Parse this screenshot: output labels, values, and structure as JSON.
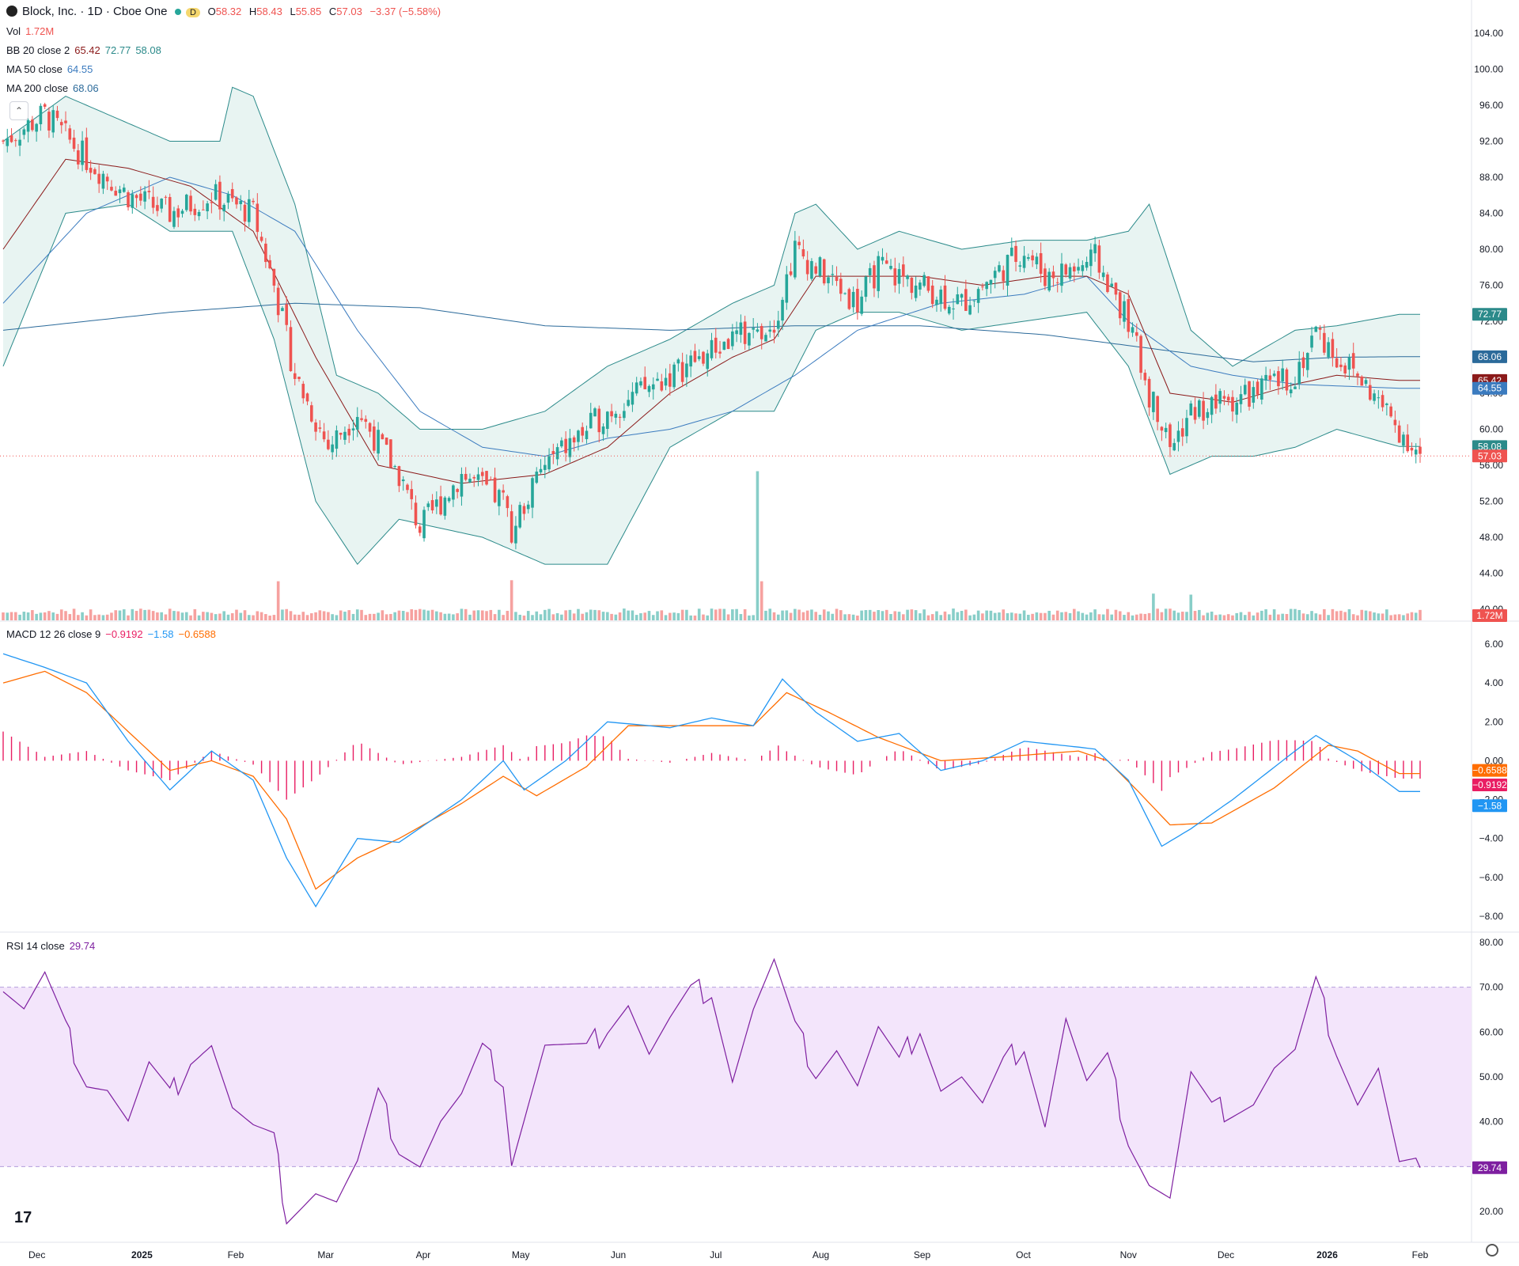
{
  "header": {
    "symbol_title": "Block, Inc. · 1D · Cboe One",
    "badge": "D",
    "open_label": "O",
    "open": "58.32",
    "high_label": "H",
    "high": "58.43",
    "low_label": "L",
    "low": "55.85",
    "close_label": "C",
    "close": "57.03",
    "change": "−3.37 (−5.58%)"
  },
  "indicators": {
    "vol_label": "Vol",
    "vol_value": "1.72M",
    "bb_label": "BB 20 close 2",
    "bb_basis": "65.42",
    "bb_upper": "72.77",
    "bb_lower": "58.08",
    "ma50_label": "MA 50 close",
    "ma50_value": "64.55",
    "ma200_label": "MA 200 close",
    "ma200_value": "68.06",
    "macd_label": "MACD 12 26 close 9",
    "macd_hist": "−0.9192",
    "macd_line": "−1.58",
    "macd_signal": "−0.6588",
    "rsi_label": "RSI 14 close",
    "rsi_value": "29.74"
  },
  "price_badges": {
    "bb_upper": "72.77",
    "ma200": "68.06",
    "bb_basis": "65.42",
    "ma50": "64.55",
    "bb_lower": "58.08",
    "last": "57.03",
    "volume": "1.72M",
    "macd_signal": "−0.6588",
    "macd_hist": "−0.9192",
    "macd_line": "−1.58",
    "rsi": "29.74"
  },
  "colors": {
    "up": "#26a69a",
    "down": "#ef5350",
    "bb_line": "#2b8a8a",
    "bb_fill": "#e8f4f2",
    "ma50": "#3b7bbf",
    "ma200": "#2b6a9a",
    "bb_basis": "#8b1a1a",
    "macd": "#2196f3",
    "signal": "#ff6d00",
    "hist": "#e91e63",
    "rsi": "#7e1fa0",
    "rsi_band": "#f3e5fb"
  },
  "chart_data": [
    {
      "type": "candlestick",
      "title": "Block, Inc. · 1D · Cboe One",
      "x_ticks": [
        "Dec",
        "2025",
        "Feb",
        "Mar",
        "Apr",
        "May",
        "Jun",
        "Jul",
        "Aug",
        "Sep",
        "Oct",
        "Nov",
        "Dec",
        "2026",
        "Feb"
      ],
      "y_ticks": [
        "104.00",
        "100.00",
        "96.00",
        "92.00",
        "88.00",
        "84.00",
        "80.00",
        "76.00",
        "72.00",
        "68.00",
        "64.00",
        "60.00",
        "56.00",
        "52.00",
        "48.00",
        "44.00",
        "40.00"
      ],
      "ylim": [
        40,
        104
      ],
      "close_series_anchors": [
        [
          0,
          92
        ],
        [
          10,
          95
        ],
        [
          20,
          90
        ],
        [
          30,
          86
        ],
        [
          40,
          84
        ],
        [
          50,
          86
        ],
        [
          55,
          85
        ],
        [
          60,
          84
        ],
        [
          65,
          76
        ],
        [
          70,
          66
        ],
        [
          78,
          58
        ],
        [
          85,
          62
        ],
        [
          95,
          55
        ],
        [
          100,
          49
        ],
        [
          110,
          55
        ],
        [
          120,
          52
        ],
        [
          122,
          49
        ],
        [
          130,
          56
        ],
        [
          145,
          62
        ],
        [
          160,
          66
        ],
        [
          175,
          70
        ],
        [
          185,
          72
        ],
        [
          190,
          80
        ],
        [
          200,
          76
        ],
        [
          205,
          74
        ],
        [
          210,
          78
        ],
        [
          220,
          76
        ],
        [
          230,
          74
        ],
        [
          240,
          78
        ],
        [
          245,
          80
        ],
        [
          250,
          77
        ],
        [
          258,
          78
        ],
        [
          262,
          79
        ],
        [
          270,
          72
        ],
        [
          275,
          64
        ],
        [
          280,
          58
        ],
        [
          285,
          62
        ],
        [
          300,
          64
        ],
        [
          310,
          66
        ],
        [
          315,
          71
        ],
        [
          320,
          68
        ],
        [
          325,
          66
        ],
        [
          330,
          63
        ],
        [
          335,
          60
        ],
        [
          340,
          57.03
        ]
      ],
      "bb_upper_anchors": [
        [
          0,
          92
        ],
        [
          15,
          97
        ],
        [
          30,
          94
        ],
        [
          40,
          92
        ],
        [
          52,
          92
        ],
        [
          55,
          98
        ],
        [
          60,
          97
        ],
        [
          70,
          85
        ],
        [
          80,
          66
        ],
        [
          90,
          64
        ],
        [
          100,
          60
        ],
        [
          115,
          60
        ],
        [
          130,
          62
        ],
        [
          145,
          67
        ],
        [
          160,
          70
        ],
        [
          175,
          74
        ],
        [
          185,
          76
        ],
        [
          190,
          84
        ],
        [
          195,
          85
        ],
        [
          205,
          80
        ],
        [
          215,
          82
        ],
        [
          230,
          80
        ],
        [
          245,
          81
        ],
        [
          260,
          81
        ],
        [
          270,
          82
        ],
        [
          275,
          85
        ],
        [
          285,
          71
        ],
        [
          295,
          67
        ],
        [
          310,
          71
        ],
        [
          320,
          71.5
        ],
        [
          335,
          72.77
        ]
      ],
      "bb_lower_anchors": [
        [
          0,
          67
        ],
        [
          15,
          84
        ],
        [
          30,
          85
        ],
        [
          40,
          82
        ],
        [
          55,
          82
        ],
        [
          65,
          70
        ],
        [
          75,
          52
        ],
        [
          85,
          45
        ],
        [
          95,
          50
        ],
        [
          105,
          49
        ],
        [
          115,
          48
        ],
        [
          130,
          45
        ],
        [
          145,
          45
        ],
        [
          160,
          58
        ],
        [
          175,
          62
        ],
        [
          185,
          62
        ],
        [
          195,
          71
        ],
        [
          205,
          73
        ],
        [
          215,
          73
        ],
        [
          230,
          71
        ],
        [
          245,
          72
        ],
        [
          260,
          73
        ],
        [
          270,
          67
        ],
        [
          280,
          55
        ],
        [
          290,
          57
        ],
        [
          300,
          57
        ],
        [
          310,
          58
        ],
        [
          320,
          60
        ],
        [
          335,
          58.08
        ]
      ],
      "bb_basis_anchors": [
        [
          0,
          80
        ],
        [
          15,
          90
        ],
        [
          30,
          89
        ],
        [
          45,
          87
        ],
        [
          60,
          82
        ],
        [
          75,
          68
        ],
        [
          90,
          56
        ],
        [
          110,
          54
        ],
        [
          130,
          55
        ],
        [
          145,
          58
        ],
        [
          160,
          64
        ],
        [
          175,
          68
        ],
        [
          185,
          70
        ],
        [
          195,
          77
        ],
        [
          205,
          77
        ],
        [
          220,
          77
        ],
        [
          235,
          76
        ],
        [
          250,
          77
        ],
        [
          260,
          77
        ],
        [
          270,
          75
        ],
        [
          280,
          64
        ],
        [
          295,
          63
        ],
        [
          310,
          65
        ],
        [
          320,
          66
        ],
        [
          335,
          65.42
        ]
      ],
      "ma50_anchors": [
        [
          0,
          74
        ],
        [
          20,
          84
        ],
        [
          40,
          88
        ],
        [
          55,
          86
        ],
        [
          70,
          82
        ],
        [
          85,
          71
        ],
        [
          100,
          62
        ],
        [
          115,
          58
        ],
        [
          130,
          57
        ],
        [
          145,
          59
        ],
        [
          160,
          60
        ],
        [
          175,
          62
        ],
        [
          190,
          66
        ],
        [
          205,
          71
        ],
        [
          225,
          74
        ],
        [
          245,
          75
        ],
        [
          260,
          77
        ],
        [
          270,
          72
        ],
        [
          285,
          67
        ],
        [
          295,
          66
        ],
        [
          310,
          65
        ],
        [
          335,
          64.55
        ]
      ],
      "ma200_anchors": [
        [
          0,
          71
        ],
        [
          40,
          73
        ],
        [
          70,
          74
        ],
        [
          100,
          73.5
        ],
        [
          130,
          71.5
        ],
        [
          160,
          71
        ],
        [
          190,
          71.5
        ],
        [
          220,
          71.5
        ],
        [
          250,
          70.5
        ],
        [
          275,
          69
        ],
        [
          300,
          67.5
        ],
        [
          320,
          68
        ],
        [
          335,
          68.06
        ]
      ],
      "volume_spikes": [
        [
          66,
          3.8
        ],
        [
          122,
          3.9
        ],
        [
          181,
          14.5
        ],
        [
          182,
          3.8
        ],
        [
          276,
          2.6
        ],
        [
          285,
          2.5
        ]
      ],
      "last_volume": "1.72M"
    },
    {
      "type": "line",
      "title": "MACD 12 26 close 9",
      "y_ticks": [
        "6.00",
        "4.00",
        "2.00",
        "0.00",
        "−2.00",
        "−4.00",
        "−6.00",
        "−8.00"
      ],
      "ylim": [
        -8,
        6
      ],
      "macd_anchors": [
        [
          0,
          5.5
        ],
        [
          10,
          4.8
        ],
        [
          20,
          4
        ],
        [
          30,
          1
        ],
        [
          40,
          -1.5
        ],
        [
          50,
          0.5
        ],
        [
          60,
          -1
        ],
        [
          68,
          -5
        ],
        [
          75,
          -7.5
        ],
        [
          85,
          -4
        ],
        [
          95,
          -4.2
        ],
        [
          110,
          -2
        ],
        [
          120,
          0
        ],
        [
          125,
          -1.5
        ],
        [
          135,
          0
        ],
        [
          145,
          2
        ],
        [
          160,
          1.7
        ],
        [
          170,
          2.2
        ],
        [
          180,
          1.8
        ],
        [
          187,
          4.2
        ],
        [
          195,
          2.5
        ],
        [
          205,
          1
        ],
        [
          215,
          1.4
        ],
        [
          225,
          -0.5
        ],
        [
          235,
          0
        ],
        [
          245,
          1
        ],
        [
          258,
          0.7
        ],
        [
          262,
          0.6
        ],
        [
          270,
          -1
        ],
        [
          278,
          -4.4
        ],
        [
          285,
          -3.5
        ],
        [
          295,
          -2
        ],
        [
          310,
          0.5
        ],
        [
          315,
          1.3
        ],
        [
          325,
          0
        ],
        [
          335,
          -1.58
        ]
      ],
      "signal_anchors": [
        [
          0,
          4
        ],
        [
          10,
          4.6
        ],
        [
          20,
          3.5
        ],
        [
          30,
          1.5
        ],
        [
          40,
          -0.5
        ],
        [
          50,
          0
        ],
        [
          60,
          -0.8
        ],
        [
          68,
          -3
        ],
        [
          75,
          -6.6
        ],
        [
          85,
          -5
        ],
        [
          95,
          -4
        ],
        [
          110,
          -2.2
        ],
        [
          120,
          -0.8
        ],
        [
          128,
          -1.8
        ],
        [
          140,
          -0.3
        ],
        [
          150,
          1.8
        ],
        [
          165,
          1.8
        ],
        [
          180,
          1.8
        ],
        [
          188,
          3.5
        ],
        [
          198,
          2.5
        ],
        [
          210,
          1.2
        ],
        [
          225,
          0
        ],
        [
          240,
          0.2
        ],
        [
          258,
          0.5
        ],
        [
          265,
          0
        ],
        [
          272,
          -1.5
        ],
        [
          280,
          -3.3
        ],
        [
          290,
          -3.2
        ],
        [
          305,
          -1.4
        ],
        [
          318,
          0.8
        ],
        [
          325,
          0.5
        ],
        [
          335,
          -0.6588
        ]
      ]
    },
    {
      "type": "line",
      "title": "RSI 14 close",
      "y_ticks": [
        "80.00",
        "70.00",
        "60.00",
        "50.00",
        "40.00",
        "30.00",
        "20.00"
      ],
      "ylim": [
        20,
        80
      ],
      "band": [
        30,
        70
      ],
      "rsi_anchors": [
        [
          0,
          70
        ],
        [
          5,
          65
        ],
        [
          10,
          72
        ],
        [
          15,
          60
        ],
        [
          20,
          50
        ],
        [
          25,
          48
        ],
        [
          30,
          40
        ],
        [
          35,
          52
        ],
        [
          40,
          45
        ],
        [
          45,
          55
        ],
        [
          50,
          58
        ],
        [
          55,
          43
        ],
        [
          60,
          38
        ],
        [
          65,
          35
        ],
        [
          68,
          20
        ],
        [
          75,
          25
        ],
        [
          80,
          22
        ],
        [
          85,
          30
        ],
        [
          90,
          45
        ],
        [
          95,
          35
        ],
        [
          100,
          31
        ],
        [
          105,
          40
        ],
        [
          110,
          45
        ],
        [
          115,
          55
        ],
        [
          120,
          50
        ],
        [
          122,
          32
        ],
        [
          130,
          57
        ],
        [
          140,
          55
        ],
        [
          145,
          62
        ],
        [
          150,
          67
        ],
        [
          155,
          55
        ],
        [
          160,
          62
        ],
        [
          165,
          68
        ],
        [
          170,
          70
        ],
        [
          175,
          50
        ],
        [
          180,
          65
        ],
        [
          185,
          75
        ],
        [
          190,
          60
        ],
        [
          195,
          52
        ],
        [
          200,
          57
        ],
        [
          205,
          48
        ],
        [
          210,
          60
        ],
        [
          215,
          52
        ],
        [
          220,
          62
        ],
        [
          225,
          48
        ],
        [
          230,
          50
        ],
        [
          235,
          43
        ],
        [
          240,
          52
        ],
        [
          245,
          58
        ],
        [
          250,
          40
        ],
        [
          255,
          63
        ],
        [
          260,
          48
        ],
        [
          265,
          53
        ],
        [
          270,
          37
        ],
        [
          275,
          27
        ],
        [
          280,
          23
        ],
        [
          285,
          50
        ],
        [
          290,
          42
        ],
        [
          300,
          45
        ],
        [
          305,
          52
        ],
        [
          310,
          55
        ],
        [
          315,
          70
        ],
        [
          320,
          57
        ],
        [
          325,
          45
        ],
        [
          330,
          52
        ],
        [
          335,
          30
        ],
        [
          340,
          29.74
        ]
      ]
    }
  ]
}
